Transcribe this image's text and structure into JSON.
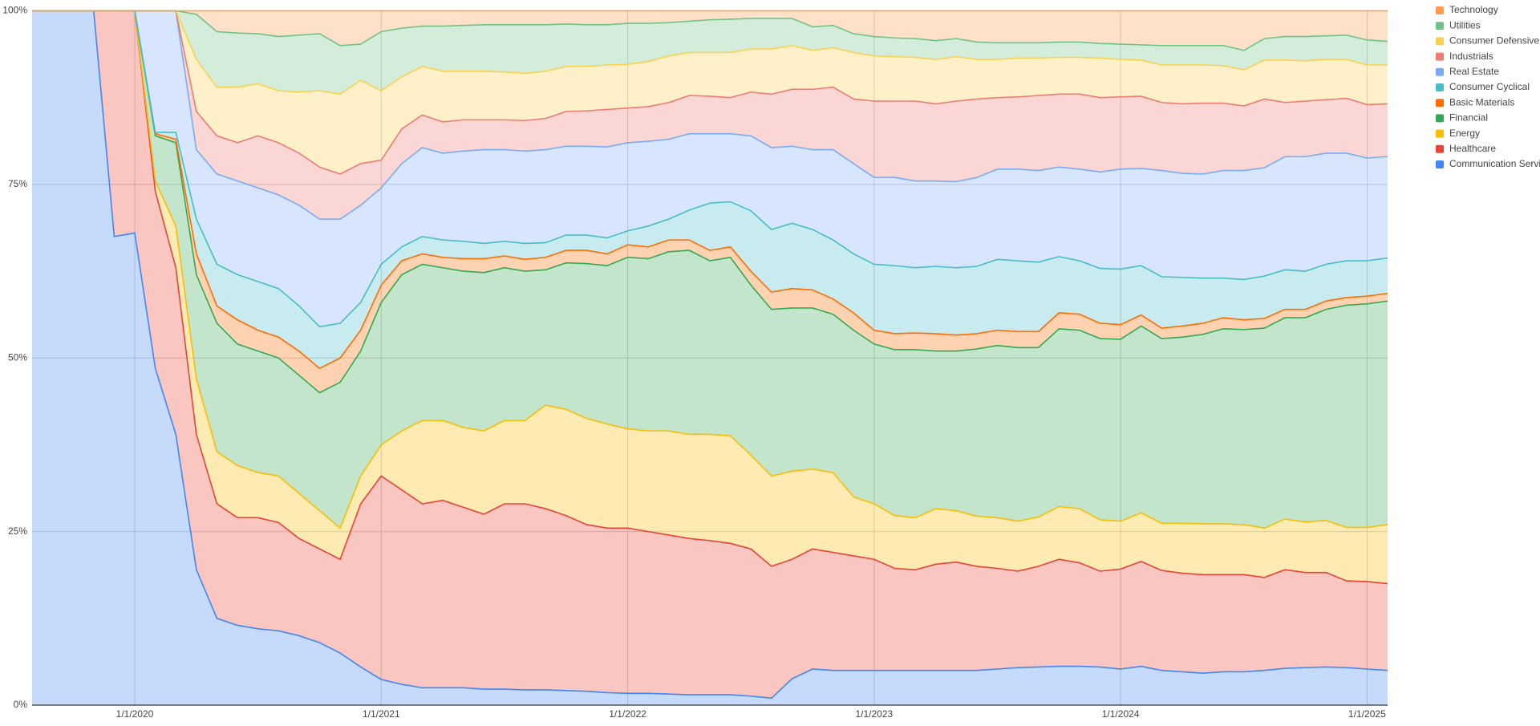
{
  "chart_data": {
    "type": "stacked_area_percent",
    "x": [
      "2019-08",
      "2019-09",
      "2019-10",
      "2019-11",
      "2019-12",
      "2020-01",
      "2020-02",
      "2020-03",
      "2020-04",
      "2020-05",
      "2020-06",
      "2020-07",
      "2020-08",
      "2020-09",
      "2020-10",
      "2020-11",
      "2020-12",
      "2021-01",
      "2021-02",
      "2021-03",
      "2021-04",
      "2021-05",
      "2021-06",
      "2021-07",
      "2021-08",
      "2021-09",
      "2021-10",
      "2021-11",
      "2021-12",
      "2022-01",
      "2022-02",
      "2022-03",
      "2022-04",
      "2022-05",
      "2022-06",
      "2022-07",
      "2022-08",
      "2022-09",
      "2022-10",
      "2022-11",
      "2022-12",
      "2023-01",
      "2023-02",
      "2023-03",
      "2023-04",
      "2023-05",
      "2023-06",
      "2023-07",
      "2023-08",
      "2023-09",
      "2023-10",
      "2023-11",
      "2023-12",
      "2024-01",
      "2024-02",
      "2024-03",
      "2024-04",
      "2024-05",
      "2024-06",
      "2024-07",
      "2024-08",
      "2024-09",
      "2024-10",
      "2024-11",
      "2024-12",
      "2025-01",
      "2025-02"
    ],
    "xlim": [
      "2019-08",
      "2025-02"
    ],
    "xticks": [
      {
        "value": "2020-01",
        "label": "1/1/2020"
      },
      {
        "value": "2021-01",
        "label": "1/1/2021"
      },
      {
        "value": "2022-01",
        "label": "1/1/2022"
      },
      {
        "value": "2023-01",
        "label": "1/1/2023"
      },
      {
        "value": "2024-01",
        "label": "1/1/2024"
      },
      {
        "value": "2025-01",
        "label": "1/1/2025"
      }
    ],
    "ylim": [
      0,
      100
    ],
    "yticks": [
      {
        "value": 0,
        "label": "0%"
      },
      {
        "value": 25,
        "label": "25%"
      },
      {
        "value": 50,
        "label": "50%"
      },
      {
        "value": 75,
        "label": "75%"
      },
      {
        "value": 100,
        "label": "100%"
      }
    ],
    "grid": true,
    "legend": "right",
    "series": [
      {
        "name": "Technology",
        "color": "#ff994d",
        "values": [
          0,
          0,
          0,
          0,
          0,
          0,
          0,
          0,
          0.5,
          3,
          3.2,
          3.3,
          3.7,
          3.5,
          3.3,
          5,
          4.8,
          3,
          2.5,
          2.2,
          2.2,
          2.1,
          2,
          2,
          2,
          2,
          1.9,
          2,
          2,
          1.8,
          1.8,
          1.7,
          1.5,
          1.3,
          1.2,
          1.1,
          1.1,
          1.1,
          2.3,
          2.1,
          3.3,
          3.7,
          3.9,
          4,
          4.3,
          4,
          4.5,
          4.6,
          4.6,
          4.6,
          4.5,
          4.5,
          4.7,
          4.8,
          4.9,
          5,
          5,
          5,
          5,
          5.7,
          4,
          3.7,
          3.7,
          3.6,
          3.5,
          4.2,
          4.4
        ]
      },
      {
        "name": "Utilities",
        "color": "#71c287",
        "values": [
          0,
          0,
          0,
          0,
          0,
          0,
          0,
          0,
          6.5,
          8,
          7.8,
          7.2,
          7.8,
          8.2,
          8.2,
          7,
          5.2,
          8.5,
          7,
          5.8,
          6.5,
          6.6,
          6.7,
          6.8,
          7,
          6.7,
          6.1,
          6,
          5.8,
          5.9,
          5.5,
          4.8,
          4.5,
          4.7,
          4.8,
          4.4,
          4.4,
          3.9,
          3.4,
          3.2,
          2.7,
          2.8,
          2.7,
          2.7,
          2.7,
          2.6,
          2.5,
          2.4,
          2.2,
          2.2,
          2.2,
          2.2,
          2.1,
          2.2,
          2.2,
          2.8,
          2.8,
          2.8,
          2.9,
          2.8,
          3.1,
          3.4,
          3.5,
          3.4,
          3.5,
          3.6,
          3.4
        ]
      },
      {
        "name": "Consumer Defensive",
        "color": "#fcd04f",
        "values": [
          0,
          0,
          0,
          0,
          0,
          0,
          0,
          0,
          7.5,
          7,
          8,
          7.5,
          7.5,
          8.8,
          11,
          11.5,
          12,
          10,
          7.5,
          7,
          7.3,
          7,
          7,
          6.9,
          6.8,
          6.8,
          6.5,
          6.4,
          6.4,
          6.3,
          6.5,
          6.7,
          6.2,
          6.3,
          6.5,
          6.2,
          6.5,
          6.3,
          5.6,
          5.7,
          6.7,
          6.5,
          6.4,
          6.3,
          6.4,
          6.4,
          5.7,
          5.5,
          5.6,
          5.4,
          5.3,
          5.3,
          5.7,
          5.4,
          5.2,
          5.4,
          5.6,
          5.5,
          5.4,
          5.2,
          5.6,
          6.1,
          5.8,
          5.8,
          5.6,
          5.7,
          5.6
        ]
      },
      {
        "name": "Industrials",
        "color": "#f07b72",
        "values": [
          0,
          0,
          0,
          0,
          0,
          0,
          0,
          0,
          5.5,
          5.5,
          5.5,
          7.5,
          7.5,
          7.5,
          7.5,
          6.5,
          6,
          4,
          5,
          4.7,
          4.5,
          4.5,
          4.3,
          4.3,
          4.4,
          4.5,
          5,
          5.1,
          5.4,
          5,
          5,
          5.3,
          5.5,
          5.4,
          5.2,
          6.3,
          7.7,
          8.2,
          8.7,
          9,
          9.3,
          11,
          11,
          11.5,
          11.1,
          11.6,
          11.3,
          10.3,
          10.4,
          10.8,
          10.5,
          10.8,
          10.7,
          10.4,
          10.4,
          9.8,
          10,
          10.2,
          9.7,
          9.3,
          9.9,
          7.8,
          8,
          7.7,
          7.9,
          7.7,
          7.6
        ]
      },
      {
        "name": "Real Estate",
        "color": "#7baaf7",
        "values": [
          0,
          0,
          0,
          0,
          0,
          0,
          17.5,
          17.5,
          10,
          13,
          13.5,
          13.5,
          13.5,
          14.5,
          15.5,
          15,
          14,
          11,
          12,
          12.8,
          12.5,
          13,
          13.5,
          13.2,
          13.3,
          13.4,
          12.8,
          12.8,
          13.1,
          12.7,
          12.2,
          11.5,
          11,
          10,
          9.8,
          10.8,
          11.8,
          11.1,
          11.5,
          13,
          13,
          12.5,
          12.7,
          12.5,
          12.3,
          12.4,
          12.8,
          13,
          13.2,
          13.2,
          12.9,
          13.2,
          13.9,
          14.4,
          14,
          15.3,
          15,
          15,
          15.5,
          15.7,
          15.6,
          16.3,
          16.5,
          16,
          15.5,
          14.8,
          14.6
        ]
      },
      {
        "name": "Consumer Cyclical",
        "color": "#46bdc6",
        "values": [
          0,
          0,
          0,
          0,
          0,
          0,
          0.2,
          1,
          5,
          6,
          6.5,
          7,
          7,
          6.5,
          6,
          5,
          4,
          3,
          2,
          2.5,
          2.5,
          2.5,
          2.2,
          2.1,
          2.3,
          2.1,
          2.2,
          2.2,
          2.3,
          2,
          3,
          3,
          4.3,
          6.8,
          6.5,
          8.7,
          9,
          9.4,
          8.7,
          8.5,
          8.5,
          9.5,
          9.8,
          9.4,
          9.7,
          9.7,
          9.7,
          10.2,
          10.2,
          10,
          8.1,
          7.7,
          7.9,
          8,
          7.1,
          7.4,
          7,
          6.5,
          5.7,
          5.8,
          6.1,
          5.7,
          5.5,
          5.3,
          5.3,
          5.1,
          5.1
        ]
      },
      {
        "name": "Basic Materials",
        "color": "#ff6d01",
        "values": [
          0,
          0,
          0,
          0,
          0,
          0,
          0.3,
          0.5,
          3,
          2.5,
          3.5,
          3,
          3,
          3.5,
          3.5,
          3.5,
          3,
          2.5,
          2,
          1.5,
          1.5,
          1.8,
          2,
          1.7,
          1.7,
          1.8,
          1.8,
          1.9,
          1.7,
          1.8,
          1.7,
          1.7,
          1.5,
          1.5,
          1.5,
          2,
          2.5,
          2.8,
          2.6,
          2.2,
          2.5,
          2,
          2.3,
          2.4,
          2.5,
          2.3,
          2.2,
          2.2,
          2.3,
          2.3,
          2.3,
          2.3,
          2.2,
          2.1,
          1.6,
          1.5,
          1.6,
          1.6,
          1.6,
          1.4,
          1.4,
          1.2,
          1.2,
          1.2,
          1.1,
          1.1,
          1.1
        ]
      },
      {
        "name": "Financial",
        "color": "#34a853",
        "values": [
          0,
          0,
          0,
          0,
          0,
          0,
          6.5,
          12,
          15,
          18.5,
          17.5,
          17.5,
          17,
          17,
          17,
          21,
          18,
          20.5,
          22.5,
          22.5,
          22,
          22.5,
          22.8,
          22,
          21.5,
          19.5,
          21.1,
          22.3,
          22.8,
          24.7,
          24.8,
          25.8,
          26.5,
          25,
          25.7,
          24.5,
          24,
          23.5,
          23.2,
          22.8,
          24,
          23,
          23.9,
          24.2,
          22.7,
          23,
          24.1,
          24.8,
          25,
          24.4,
          25.6,
          25.7,
          26.1,
          26.2,
          26.9,
          26.6,
          26.8,
          27.3,
          28.1,
          28.1,
          28.8,
          29,
          29.4,
          30.4,
          32,
          32.2,
          32.2
        ]
      },
      {
        "name": "Energy",
        "color": "#fbbc04",
        "values": [
          0,
          0,
          0,
          0,
          0,
          0,
          1.5,
          6,
          8,
          7.5,
          7.5,
          6.5,
          6.7,
          6.5,
          5.5,
          4.5,
          4,
          4.5,
          8.5,
          12,
          11.5,
          11.5,
          12,
          12,
          12,
          14.9,
          15.3,
          15.3,
          15,
          14.3,
          14.5,
          15,
          15,
          15.3,
          15.5,
          13.5,
          13,
          12.7,
          11.5,
          11.5,
          8.5,
          8,
          7.6,
          7.5,
          8,
          7.4,
          7.2,
          7.3,
          7.2,
          7.1,
          7.6,
          7.8,
          7.4,
          6.9,
          7,
          6.8,
          7.2,
          7.3,
          7.3,
          7.2,
          7.1,
          7.3,
          7.3,
          7.5,
          7.7,
          7.8,
          8.5
        ]
      },
      {
        "name": "Healthcare",
        "color": "#ea4335",
        "values": [
          0,
          0,
          0,
          0,
          32.5,
          32,
          25.5,
          24,
          19.5,
          16.5,
          15.5,
          16,
          15.6,
          14,
          13.5,
          13.5,
          23.5,
          29.3,
          28,
          26.5,
          27,
          26,
          25.2,
          26.7,
          26.8,
          26.1,
          25.2,
          24,
          23.7,
          23.8,
          23.3,
          22.9,
          22.5,
          22.2,
          21.8,
          21.2,
          19,
          17.2,
          17.3,
          17,
          16.5,
          16,
          14.7,
          14.5,
          15.3,
          15.6,
          15,
          14.5,
          13.9,
          14.5,
          15.4,
          14.9,
          13.8,
          14.4,
          15.1,
          14.4,
          14.2,
          14.2,
          14,
          14,
          13.4,
          14.2,
          13.7,
          13.6,
          12.5,
          12.6,
          12.5
        ]
      },
      {
        "name": "Communication Services",
        "color": "#4285f4",
        "values": [
          100,
          100,
          100,
          100,
          67.5,
          68,
          48.5,
          39,
          19.5,
          12.5,
          11.5,
          11,
          10.7,
          10,
          9,
          7.5,
          5.5,
          3.7,
          3,
          2.5,
          2.5,
          2.5,
          2.3,
          2.3,
          2.2,
          2.2,
          2.1,
          2,
          1.8,
          1.7,
          1.7,
          1.6,
          1.5,
          1.5,
          1.5,
          1.3,
          1,
          3.8,
          5.2,
          5,
          5,
          5,
          5,
          5,
          5,
          5,
          5,
          5.2,
          5.4,
          5.5,
          5.6,
          5.6,
          5.5,
          5.2,
          5.6,
          5,
          4.8,
          4.6,
          4.8,
          4.8,
          5,
          5.3,
          5.4,
          5.5,
          5.4,
          5.2,
          5
        ]
      }
    ]
  }
}
